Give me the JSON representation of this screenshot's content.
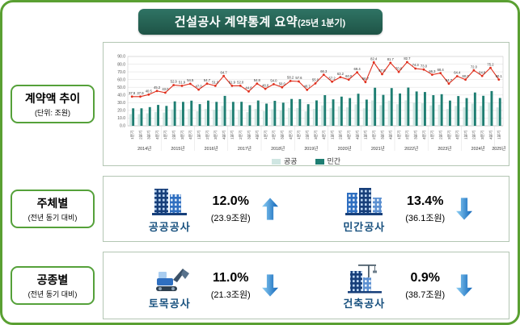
{
  "header": {
    "title_main": "건설공사 계약통계 요약",
    "title_sub": "(25년 1분기)"
  },
  "sections": {
    "trend": {
      "label": "계약액 추이",
      "sublabel": "(단위: 조원)"
    },
    "subject": {
      "label": "주체별",
      "sublabel": "(전년 동기 대비)",
      "items": [
        {
          "name": "공공공사",
          "pct": "12.0%",
          "amount": "(23.9조원)",
          "direction": "up"
        },
        {
          "name": "민간공사",
          "pct": "13.4%",
          "amount": "(36.1조원)",
          "direction": "down"
        }
      ]
    },
    "worktype": {
      "label": "공종별",
      "sublabel": "(전년 동기 대비)",
      "items": [
        {
          "name": "토목공사",
          "pct": "11.0%",
          "amount": "(21.3조원)",
          "direction": "down"
        },
        {
          "name": "건축공사",
          "pct": "0.9%",
          "amount": "(38.7조원)",
          "direction": "down"
        }
      ]
    }
  },
  "colors": {
    "frame_border": "#5aa032",
    "title_bg": "#265f50",
    "public_bar": "#cfe6e2",
    "private_bar": "#1e7e72",
    "line": "#e0301e",
    "arrow_blue": "#0e63b8"
  },
  "chart_data": {
    "type": "bar+line",
    "title": "계약액 추이",
    "unit": "조원",
    "ylim": [
      0,
      90
    ],
    "ytick_step": 10,
    "grid": true,
    "legend_position": "bottom",
    "years": [
      "2014년",
      "2015년",
      "2016년",
      "2017년",
      "2018년",
      "2019년",
      "2020년",
      "2021년",
      "2022년",
      "2023년",
      "2024년",
      "2025년"
    ],
    "quarters_per_year": [
      4,
      4,
      4,
      4,
      4,
      4,
      4,
      4,
      4,
      4,
      4,
      1
    ],
    "quarter_labels": [
      "1분기",
      "2분기",
      "3분기",
      "4분기"
    ],
    "series": [
      {
        "name": "공공",
        "kind": "bar",
        "color": "#cfe6e2",
        "values": [
          15.2,
          15.2,
          16.2,
          18.1,
          17.2,
          21.2,
          20.8,
          21.8,
          18.8,
          21.9,
          20.8,
          25.9,
          20.8,
          20.8,
          17.8,
          21.9,
          19.2,
          21.6,
          20.0,
          23.3,
          23.0,
          18.7,
          22.0,
          26.5,
          22.9,
          25.3,
          24.0,
          27.8,
          22.7,
          33.0,
          26.8,
          32.7,
          28.0,
          33.1,
          29.7,
          29.2,
          26.5,
          27.4,
          21.9,
          25.8,
          24.0,
          28.8,
          25.9,
          30.1,
          23.9
        ]
      },
      {
        "name": "민간",
        "kind": "bar",
        "color": "#1e7e72",
        "values": [
          22.7,
          22.7,
          24.3,
          27.1,
          25.8,
          31.7,
          31.1,
          32.7,
          28.2,
          32.8,
          31.1,
          38.8,
          31.1,
          31.2,
          26.8,
          32.9,
          28.8,
          32.4,
          30.0,
          34.9,
          34.6,
          28.0,
          33.0,
          39.8,
          34.3,
          37.9,
          36.0,
          41.6,
          34.0,
          49.4,
          40.2,
          49.0,
          42.0,
          49.6,
          44.6,
          43.8,
          39.8,
          41.0,
          32.8,
          38.6,
          36.0,
          43.2,
          38.9,
          45.1,
          36.1
        ]
      },
      {
        "name": "계약액",
        "kind": "line",
        "color": "#e0301e",
        "values": [
          37.9,
          37.9,
          40.5,
          45.2,
          43.0,
          52.9,
          51.9,
          54.5,
          47.0,
          54.7,
          51.9,
          64.7,
          51.9,
          52.0,
          44.6,
          54.8,
          48.0,
          54.0,
          50.0,
          58.2,
          57.6,
          46.7,
          55.0,
          66.3,
          57.2,
          63.2,
          60.0,
          69.4,
          56.7,
          82.4,
          67.0,
          81.7,
          70.0,
          82.7,
          74.3,
          73.0,
          66.3,
          68.4,
          54.7,
          64.4,
          60.0,
          72.0,
          64.8,
          75.2,
          60.1
        ]
      }
    ]
  }
}
